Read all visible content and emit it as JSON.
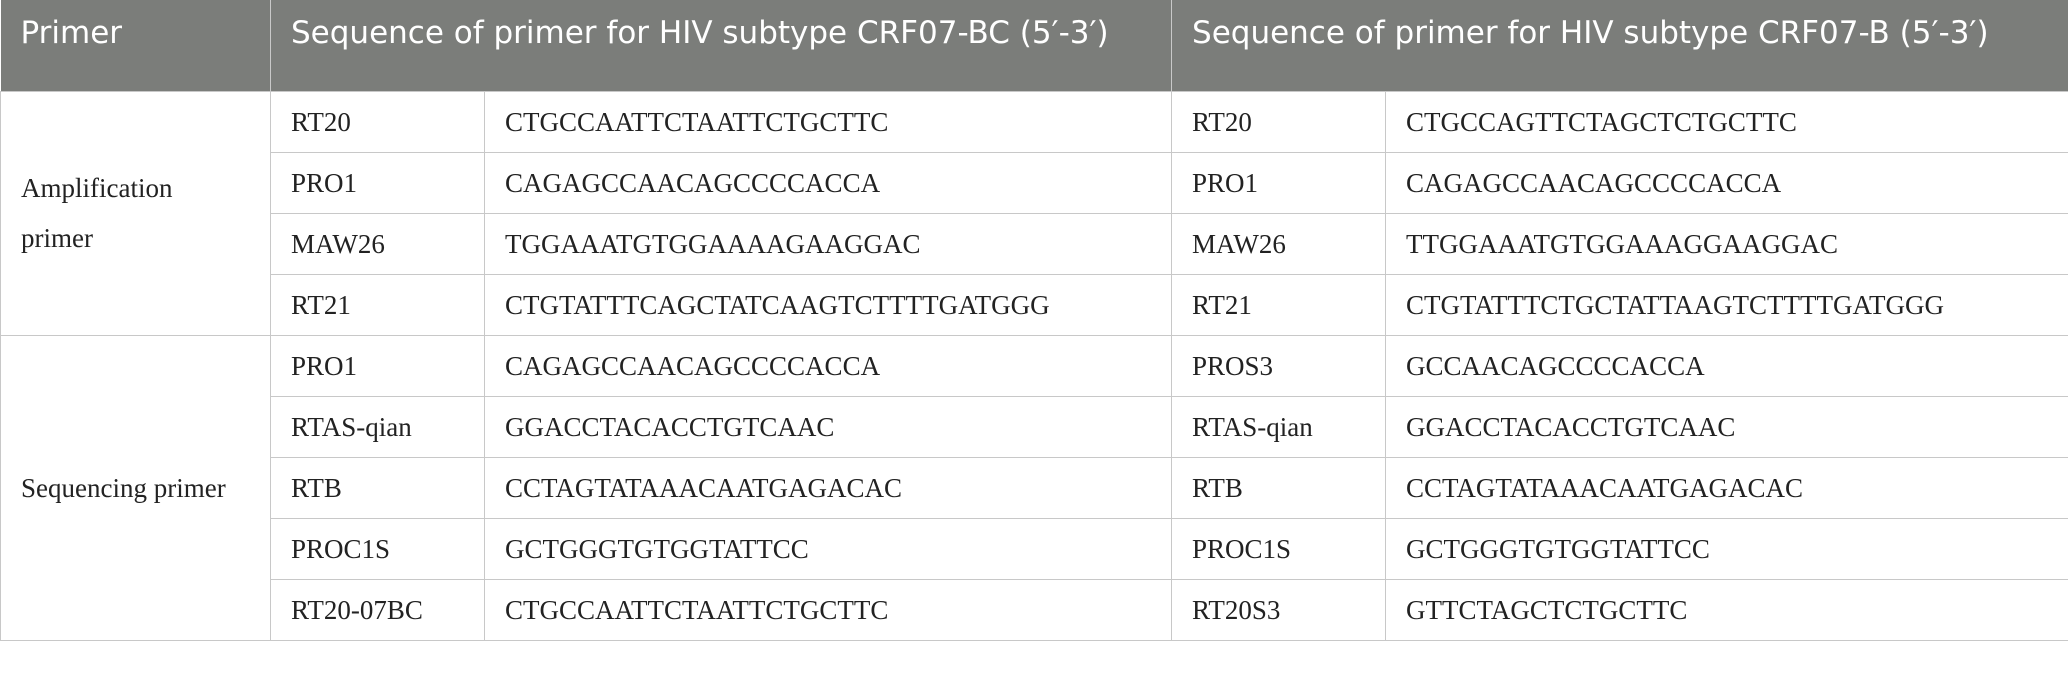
{
  "table": {
    "header": [
      "Primer",
      "Sequence of primer for HIV subtype CRF07-BC (5′-3′)",
      "Sequence of primer for HIV subtype CRF07-B (5′-3′)"
    ],
    "groups": [
      {
        "label": "Amplification primer",
        "rows": [
          [
            "RT20",
            "CTGCCAATTCTAATTCTGCTTC",
            "RT20",
            "CTGCCAGTTCTAGCTCTGCTTC"
          ],
          [
            "PRO1",
            "CAGAGCCAACAGCCCCACCA",
            "PRO1",
            "CAGAGCCAACAGCCCCACCA"
          ],
          [
            "MAW26",
            "TGGAAATGTGGAAAAGAAGGAC",
            "MAW26",
            "TTGGAAATGTGGAAAGGAAGGAC"
          ],
          [
            "RT21",
            "CTGTATTTCAGCTATCAAGTCTTTTGATGGG",
            "RT21",
            "CTGTATTTCTGCTATTAAGTCTTTTGATGGG"
          ]
        ]
      },
      {
        "label": "Sequencing primer",
        "rows": [
          [
            "PRO1",
            "CAGAGCCAACAGCCCCACCA",
            "PROS3",
            "GCCAACAGCCCCACCA"
          ],
          [
            "RTAS-qian",
            "GGACCTACACCTGTCAAC",
            "RTAS-qian",
            "GGACCTACACCTGTCAAC"
          ],
          [
            "RTB",
            "CCTAGTATAAACAATGAGACAC",
            "RTB",
            "CCTAGTATAAACAATGAGACAC"
          ],
          [
            "PROC1S",
            "GCTGGGTGTGGTATTCC",
            "PROC1S",
            "GCTGGGTGTGGTATTCC"
          ],
          [
            "RT20-07BC",
            "CTGCCAATTCTAATTCTGCTTC",
            "RT20S3",
            "GTTCTAGCTCTGCTTC"
          ]
        ]
      }
    ]
  }
}
